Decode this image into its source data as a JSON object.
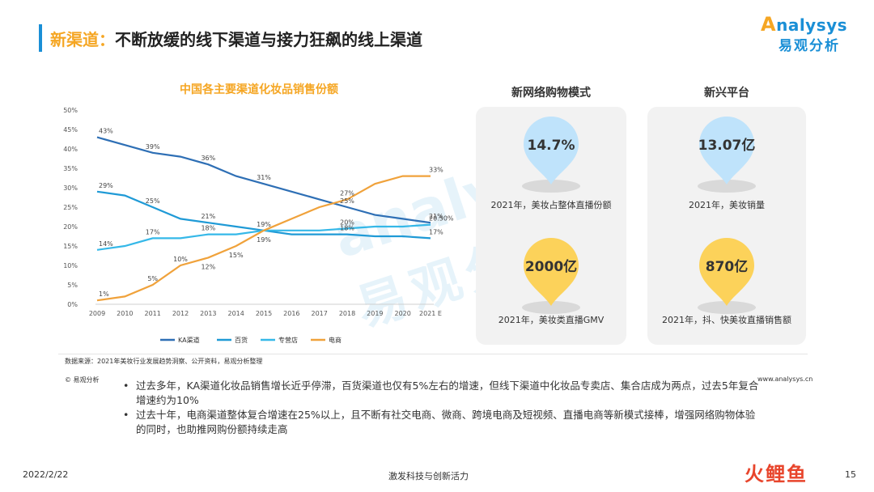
{
  "header": {
    "title_prefix": "新渠道：",
    "title_rest": "不断放缓的线下渠道与接力狂飙的线上渠道",
    "logo_text": "nalysys",
    "logo_o": "A",
    "logo_cn": "易观分析"
  },
  "colors": {
    "accent_blue": "#1a8fd6",
    "accent_orange": "#f5a623",
    "ka": "#2e6fb5",
    "dept": "#1f9ad6",
    "specialty": "#35b8e8",
    "ecommerce": "#f0a23b",
    "pin_blue": "#bfe3fb",
    "pin_yellow": "#fcd25a"
  },
  "chart_data": {
    "type": "line",
    "title": "中国各主要渠道化妆品销售份额",
    "categories": [
      "2009",
      "2010",
      "2011",
      "2012",
      "2013",
      "2014",
      "2015",
      "2016",
      "2017",
      "2018",
      "2019",
      "2020",
      "2021 E"
    ],
    "ylim": [
      0,
      50
    ],
    "yticks": [
      "0%",
      "5%",
      "10%",
      "15%",
      "20%",
      "25%",
      "30%",
      "35%",
      "40%",
      "45%",
      "50%"
    ],
    "series": [
      {
        "name": "KA渠道",
        "values": [
          43,
          41,
          39,
          38,
          36,
          33,
          31,
          29,
          27,
          25,
          23,
          22,
          21
        ]
      },
      {
        "name": "百货",
        "values": [
          29,
          28,
          25,
          22,
          21,
          20,
          19,
          18,
          18,
          18,
          17.5,
          17.5,
          17
        ]
      },
      {
        "name": "专营店",
        "values": [
          14,
          15,
          17,
          17,
          18,
          18,
          19,
          19,
          19,
          19.5,
          20,
          20,
          20.5
        ]
      },
      {
        "name": "电商",
        "values": [
          1,
          2,
          5,
          10,
          12,
          15,
          19,
          22,
          25,
          27,
          31,
          33,
          33
        ]
      }
    ],
    "point_labels": [
      {
        "series": 0,
        "index": 0,
        "text": "43%"
      },
      {
        "series": 0,
        "index": 2,
        "text": "39%"
      },
      {
        "series": 0,
        "index": 4,
        "text": "36%"
      },
      {
        "series": 0,
        "index": 6,
        "text": "31%"
      },
      {
        "series": 0,
        "index": 9,
        "text": "25%"
      },
      {
        "series": 0,
        "index": 12,
        "text": "21%"
      },
      {
        "series": 1,
        "index": 0,
        "text": "29%"
      },
      {
        "series": 1,
        "index": 2,
        "text": "25%"
      },
      {
        "series": 1,
        "index": 4,
        "text": "21%"
      },
      {
        "series": 1,
        "index": 6,
        "text": "19%"
      },
      {
        "series": 1,
        "index": 9,
        "text": "18%"
      },
      {
        "series": 1,
        "index": 12,
        "text": "17%"
      },
      {
        "series": 2,
        "index": 0,
        "text": "14%"
      },
      {
        "series": 2,
        "index": 2,
        "text": "17%"
      },
      {
        "series": 2,
        "index": 4,
        "text": "18%"
      },
      {
        "series": 2,
        "index": 9,
        "text": "20%"
      },
      {
        "series": 2,
        "index": 12,
        "text": "20.50%"
      },
      {
        "series": 3,
        "index": 0,
        "text": "1%"
      },
      {
        "series": 3,
        "index": 2,
        "text": "5%"
      },
      {
        "series": 3,
        "index": 3,
        "text": "10%"
      },
      {
        "series": 3,
        "index": 4,
        "text": "12%"
      },
      {
        "series": 3,
        "index": 5,
        "text": "15%"
      },
      {
        "series": 3,
        "index": 6,
        "text": "19%"
      },
      {
        "series": 3,
        "index": 9,
        "text": "27%"
      },
      {
        "series": 3,
        "index": 12,
        "text": "33%"
      }
    ],
    "legend_position": "bottom",
    "grid": false
  },
  "panels": {
    "left": {
      "title": "新网络购物模式",
      "items": [
        {
          "value": "14.7%",
          "caption": "2021年，美妆占整体直播份额",
          "color": "blue"
        },
        {
          "value": "2000亿",
          "caption": "2021年，美妆类直播GMV",
          "color": "yellow"
        }
      ]
    },
    "right": {
      "title": "新兴平台",
      "items": [
        {
          "value": "13.07亿",
          "caption": "2021年，美妆销量",
          "color": "blue"
        },
        {
          "value": "870亿",
          "caption": "2021年，抖、快美妆直播销售额",
          "color": "yellow"
        }
      ]
    }
  },
  "source": "数据来源：2021年美妆行业发展趋势洞察、公开资料，易观分析整理",
  "copyright": "© 易观分析",
  "website": "www.analysys.cn",
  "bullets": [
    "过去多年，KA渠道化妆品销售增长近乎停滞，百货渠道也仅有5%左右的增速，但线下渠道中化妆品专卖店、集合店成为两点，过去5年复合增速约为10%",
    "过去十年，电商渠道整体复合增速在25%以上，且不断有社交电商、微商、跨境电商及短视频、直播电商等新模式接棒，增强网络购物体验的同时，也助推网购份额持续走高"
  ],
  "footer": {
    "date": "2022/2/22",
    "slogan": "激发科技与创新活力",
    "page": "15",
    "corner_mark": "火鲤鱼"
  },
  "watermark": {
    "en": "analysys",
    "cn": "易观分析"
  }
}
